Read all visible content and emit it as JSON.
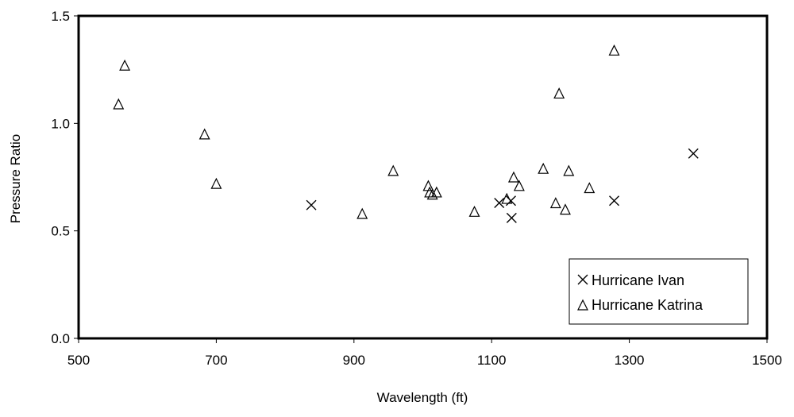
{
  "chart_data": {
    "type": "scatter",
    "title": "",
    "xlabel": "Wavelength (ft)",
    "ylabel": "Pressure Ratio",
    "xlim": [
      500,
      1500
    ],
    "ylim": [
      0.0,
      1.5
    ],
    "x_ticks": [
      "500",
      "700",
      "900",
      "1100",
      "1300",
      "1500"
    ],
    "x_tick_values": [
      500,
      700,
      900,
      1100,
      1300,
      1500
    ],
    "y_ticks": [
      "0.0",
      "0.5",
      "1.0",
      "1.5"
    ],
    "y_tick_values": [
      0.0,
      0.5,
      1.0,
      1.5
    ],
    "grid": false,
    "legend_position": "bottom-right",
    "series": [
      {
        "name": "Hurricane Ivan",
        "marker": "x",
        "color": "#000000",
        "points": [
          {
            "x": 838,
            "y": 0.62
          },
          {
            "x": 1111,
            "y": 0.63
          },
          {
            "x": 1128,
            "y": 0.64
          },
          {
            "x": 1129,
            "y": 0.56
          },
          {
            "x": 1278,
            "y": 0.64
          },
          {
            "x": 1393,
            "y": 0.86
          }
        ]
      },
      {
        "name": "Hurricane Katrina",
        "marker": "triangle",
        "color": "#000000",
        "points": [
          {
            "x": 558,
            "y": 1.09
          },
          {
            "x": 567,
            "y": 1.27
          },
          {
            "x": 683,
            "y": 0.95
          },
          {
            "x": 700,
            "y": 0.72
          },
          {
            "x": 912,
            "y": 0.58
          },
          {
            "x": 957,
            "y": 0.78
          },
          {
            "x": 1008,
            "y": 0.71
          },
          {
            "x": 1010,
            "y": 0.68
          },
          {
            "x": 1014,
            "y": 0.67
          },
          {
            "x": 1020,
            "y": 0.68
          },
          {
            "x": 1075,
            "y": 0.59
          },
          {
            "x": 1122,
            "y": 0.65
          },
          {
            "x": 1132,
            "y": 0.75
          },
          {
            "x": 1140,
            "y": 0.71
          },
          {
            "x": 1175,
            "y": 0.79
          },
          {
            "x": 1193,
            "y": 0.63
          },
          {
            "x": 1198,
            "y": 1.14
          },
          {
            "x": 1207,
            "y": 0.6
          },
          {
            "x": 1212,
            "y": 0.78
          },
          {
            "x": 1242,
            "y": 0.7
          },
          {
            "x": 1278,
            "y": 1.34
          }
        ]
      }
    ]
  }
}
